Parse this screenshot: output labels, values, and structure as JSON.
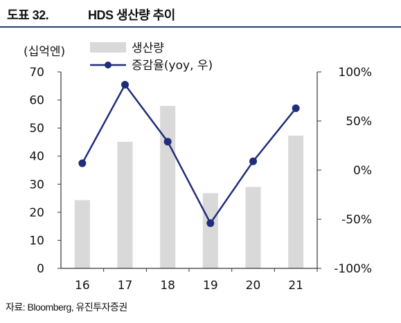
{
  "header": {
    "figure_no": "도표 32.",
    "title": "HDS 생산량 추이"
  },
  "source": "자료: Bloomberg, 유진투자증권",
  "colors": {
    "bar": "#d9d9d9",
    "line": "#1f2d7a",
    "axis": "#333333",
    "title_rule": "#1f3b73"
  },
  "chart_data": {
    "type": "bar",
    "unit_label": "(십억엔)",
    "categories": [
      "16",
      "17",
      "18",
      "19",
      "20",
      "21"
    ],
    "y_left": {
      "range": [
        0,
        70
      ],
      "ticks": [
        "0",
        "10",
        "20",
        "30",
        "40",
        "50",
        "60",
        "70"
      ]
    },
    "y_right": {
      "range": [
        -100,
        100
      ],
      "ticks": [
        "-100%",
        "-50%",
        "0%",
        "50%",
        "100%"
      ]
    },
    "series": [
      {
        "name": "생산량",
        "kind": "bar",
        "axis": "left",
        "values": [
          24.3,
          45.1,
          57.9,
          26.8,
          29.0,
          47.3
        ]
      },
      {
        "name": "증감율(yoy, 우)",
        "kind": "line",
        "axis": "right",
        "values": [
          7,
          87,
          29,
          -54,
          9,
          63
        ]
      }
    ],
    "legend_placement": "top",
    "grid": false
  }
}
